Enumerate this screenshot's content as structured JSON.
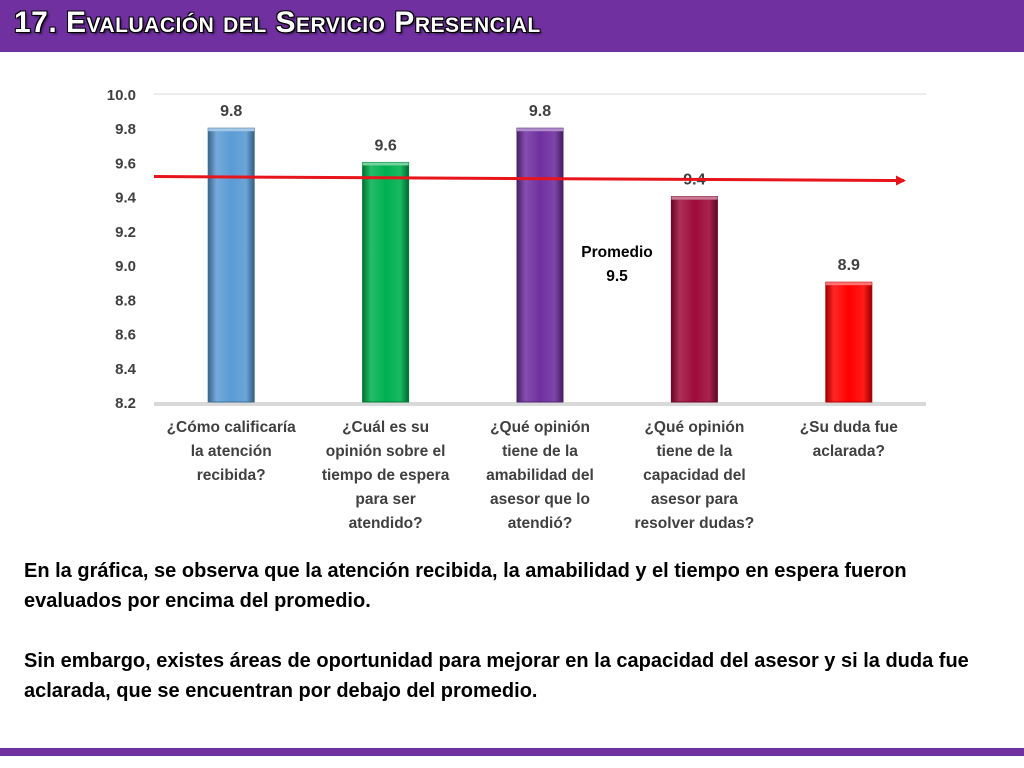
{
  "header": {
    "title": "17. Evaluación del Servicio Presencial"
  },
  "colors": {
    "brand": "#7030a0",
    "average_line": "#e8141c"
  },
  "chart_data": {
    "type": "bar",
    "categories": [
      [
        "¿Cómo calificaría",
        "la atención",
        "recibida?"
      ],
      [
        "¿Cuál es su",
        "opinión sobre el",
        "tiempo de espera",
        "para ser",
        "atendido?"
      ],
      [
        "¿Qué opinión",
        "tiene de la",
        "amabilidad del",
        "asesor que lo",
        "atendió?"
      ],
      [
        "¿Qué opinión",
        "tiene de la",
        "capacidad del",
        "asesor para",
        "resolver dudas?"
      ],
      [
        "¿Su duda fue",
        "aclarada?"
      ]
    ],
    "values": [
      9.8,
      9.6,
      9.8,
      9.4,
      8.9
    ],
    "value_labels": [
      "9.8",
      "9.6",
      "9.8",
      "9.4",
      "8.9"
    ],
    "bar_colors": [
      "#5b9bd5",
      "#00b050",
      "#7030a0",
      "#9e0b3b",
      "#ff0000"
    ],
    "ylim": [
      8.2,
      10.0
    ],
    "yticks": [
      "10.0",
      "9.8",
      "9.6",
      "9.4",
      "9.2",
      "9.0",
      "8.8",
      "8.6",
      "8.4",
      "8.2"
    ],
    "average": 9.5,
    "average_label": [
      "Promedio",
      "9.5"
    ],
    "grid": false,
    "legend": "none"
  },
  "text": {
    "paragraph1": "En la gráfica, se observa que la atención recibida, la amabilidad y el tiempo en espera fueron evaluados por encima del promedio.",
    "paragraph2": "Sin embargo, existes áreas de oportunidad para mejorar en la capacidad del asesor y si la duda fue aclarada, que se encuentran por debajo del promedio."
  }
}
